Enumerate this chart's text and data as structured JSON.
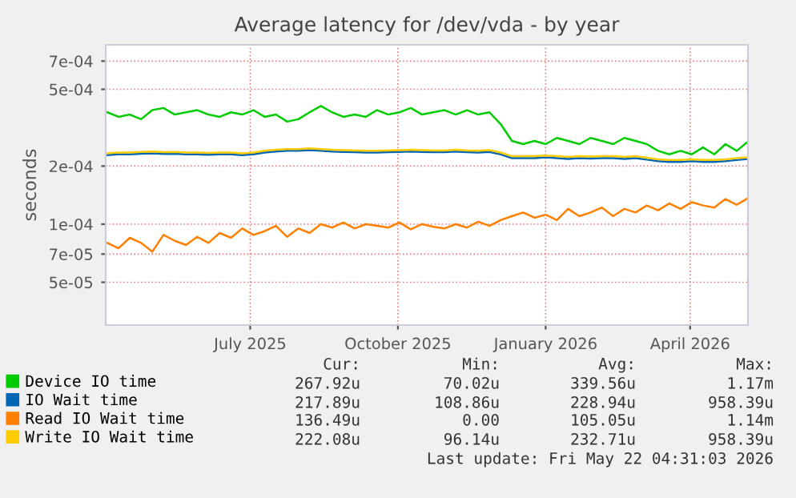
{
  "chart_data": {
    "type": "line",
    "title": "Average latency for /dev/vda - by year",
    "ylabel": "seconds",
    "log": "y",
    "grid": true,
    "legend": "bottom",
    "marker": "none",
    "line_style": "solid",
    "xlim": [
      "2025-04-17",
      "2026-05-22"
    ],
    "xticks": [
      {
        "value": "2025-07-16",
        "label": "July 2025"
      },
      {
        "value": "2025-10-16",
        "label": "October 2025"
      },
      {
        "value": "2026-01-16",
        "label": "January 2026"
      },
      {
        "value": "2026-04-16",
        "label": "April 2026"
      }
    ],
    "ylim": [
      3e-05,
      0.00085
    ],
    "yticks": [
      {
        "value": 5e-05,
        "label": "5e-05"
      },
      {
        "value": 7e-05,
        "label": "7e-05"
      },
      {
        "value": 0.0001,
        "label": "1e-04"
      },
      {
        "value": 0.0002,
        "label": "2e-04"
      },
      {
        "value": 0.0005,
        "label": "5e-04"
      },
      {
        "value": 0.0007,
        "label": "7e-04"
      }
    ],
    "x": [
      "2025-04-18",
      "2025-04-25",
      "2025-05-02",
      "2025-05-09",
      "2025-05-16",
      "2025-05-23",
      "2025-05-30",
      "2025-06-06",
      "2025-06-13",
      "2025-06-20",
      "2025-06-27",
      "2025-07-04",
      "2025-07-11",
      "2025-07-18",
      "2025-07-25",
      "2025-08-01",
      "2025-08-08",
      "2025-08-15",
      "2025-08-22",
      "2025-08-29",
      "2025-09-05",
      "2025-09-12",
      "2025-09-19",
      "2025-09-26",
      "2025-10-03",
      "2025-10-10",
      "2025-10-17",
      "2025-10-24",
      "2025-10-31",
      "2025-11-07",
      "2025-11-14",
      "2025-11-21",
      "2025-11-28",
      "2025-12-05",
      "2025-12-12",
      "2025-12-19",
      "2025-12-26",
      "2026-01-02",
      "2026-01-09",
      "2026-01-16",
      "2026-01-23",
      "2026-01-30",
      "2026-02-06",
      "2026-02-13",
      "2026-02-20",
      "2026-02-27",
      "2026-03-06",
      "2026-03-13",
      "2026-03-20",
      "2026-03-27",
      "2026-04-03",
      "2026-04-10",
      "2026-04-17",
      "2026-04-24",
      "2026-05-01",
      "2026-05-08",
      "2026-05-15",
      "2026-05-22"
    ],
    "series": [
      {
        "name": "Device IO time",
        "color": "#00cc00",
        "values": [
          0.00038,
          0.00036,
          0.00037,
          0.00035,
          0.00039,
          0.0004,
          0.00037,
          0.00038,
          0.00039,
          0.00037,
          0.00036,
          0.00038,
          0.00037,
          0.00039,
          0.00036,
          0.00037,
          0.00034,
          0.00035,
          0.00038,
          0.00041,
          0.00038,
          0.00036,
          0.00037,
          0.00036,
          0.00039,
          0.00037,
          0.00038,
          0.0004,
          0.00037,
          0.00038,
          0.00039,
          0.00037,
          0.00039,
          0.00037,
          0.00038,
          0.00033,
          0.00027,
          0.00026,
          0.00027,
          0.00026,
          0.00028,
          0.00027,
          0.00026,
          0.00028,
          0.00027,
          0.00026,
          0.00028,
          0.00027,
          0.00026,
          0.00024,
          0.00023,
          0.00024,
          0.00023,
          0.00025,
          0.00023,
          0.00026,
          0.00024,
          0.000268
        ]
      },
      {
        "name": "IO Wait time",
        "color": "#0066b3",
        "values": [
          0.000228,
          0.00023,
          0.00023,
          0.000232,
          0.000233,
          0.000231,
          0.000232,
          0.00023,
          0.00023,
          0.000229,
          0.00023,
          0.00023,
          0.000228,
          0.00023,
          0.000235,
          0.000238,
          0.00024,
          0.00024,
          0.000242,
          0.00024,
          0.000238,
          0.000237,
          0.000236,
          0.000235,
          0.000235,
          0.000236,
          0.000237,
          0.000238,
          0.000237,
          0.000236,
          0.000236,
          0.000238,
          0.000236,
          0.000235,
          0.000237,
          0.00023,
          0.00022,
          0.00022,
          0.00022,
          0.000222,
          0.00022,
          0.000218,
          0.00022,
          0.000219,
          0.00022,
          0.00022,
          0.000218,
          0.00022,
          0.000216,
          0.000212,
          0.00021,
          0.00021,
          0.000212,
          0.00021,
          0.00021,
          0.000212,
          0.000215,
          0.000218
        ]
      },
      {
        "name": "Read IO Wait time",
        "color": "#ff8000",
        "values": [
          8e-05,
          7.5e-05,
          8.5e-05,
          8e-05,
          7.2e-05,
          8.8e-05,
          8.2e-05,
          7.8e-05,
          8.6e-05,
          8e-05,
          9e-05,
          8.5e-05,
          9.5e-05,
          8.8e-05,
          9.2e-05,
          9.8e-05,
          8.6e-05,
          9.5e-05,
          9e-05,
          0.0001,
          9.6e-05,
          0.000102,
          9.5e-05,
          0.0001,
          9.8e-05,
          9.6e-05,
          0.000102,
          9.4e-05,
          0.0001,
          9.7e-05,
          9.5e-05,
          0.0001,
          9.6e-05,
          0.000103,
          9.8e-05,
          0.000105,
          0.00011,
          0.000115,
          0.000108,
          0.000112,
          0.000105,
          0.00012,
          0.00011,
          0.000115,
          0.000122,
          0.00011,
          0.00012,
          0.000115,
          0.000125,
          0.000118,
          0.000128,
          0.00012,
          0.00013,
          0.000125,
          0.000122,
          0.000135,
          0.000126,
          0.0001365
        ]
      },
      {
        "name": "Write IO Wait time",
        "color": "#ffcc00",
        "values": [
          0.000233,
          0.000235,
          0.000235,
          0.000237,
          0.000238,
          0.000236,
          0.000237,
          0.000235,
          0.000235,
          0.000234,
          0.000235,
          0.000235,
          0.000233,
          0.000235,
          0.00024,
          0.000243,
          0.000245,
          0.000245,
          0.000247,
          0.000245,
          0.000243,
          0.000242,
          0.000241,
          0.00024,
          0.00024,
          0.000241,
          0.000242,
          0.000243,
          0.000242,
          0.000241,
          0.000241,
          0.000243,
          0.000241,
          0.00024,
          0.000242,
          0.000235,
          0.000225,
          0.000225,
          0.000225,
          0.000227,
          0.000225,
          0.000223,
          0.000225,
          0.000224,
          0.000225,
          0.000225,
          0.000223,
          0.000225,
          0.000221,
          0.000217,
          0.000215,
          0.000215,
          0.000217,
          0.000215,
          0.000215,
          0.000217,
          0.00022,
          0.000222
        ]
      }
    ],
    "annotations": [
      "Cur:",
      "Min:",
      "Avg:",
      "Max:",
      "267.92u",
      "70.02u",
      "339.56u",
      "1.17m",
      "217.89u",
      "108.86u",
      "228.94u",
      "958.39u",
      "136.49u",
      "0.00",
      "105.05u",
      "1.14m",
      "222.08u",
      "96.14u",
      "232.71u",
      "958.39u",
      "Last update: Fri May 22 04:31:03 2026"
    ]
  }
}
